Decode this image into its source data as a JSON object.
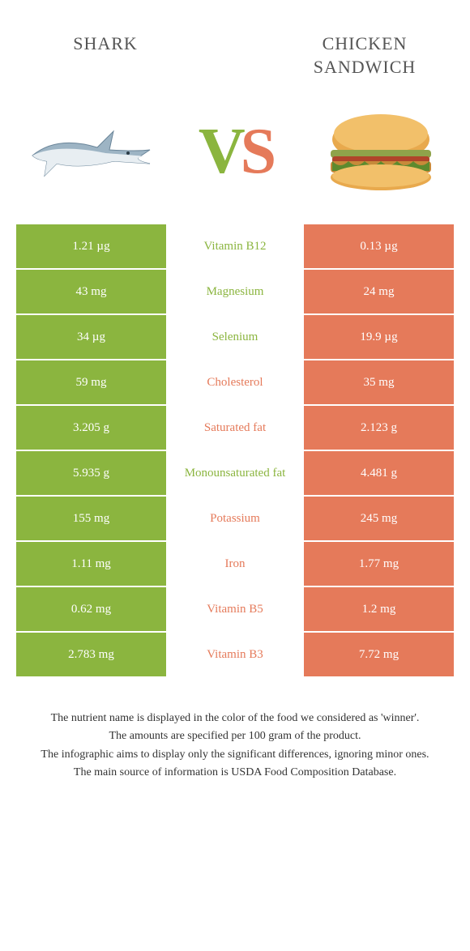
{
  "header": {
    "left_title": "Shark",
    "right_title": "Chicken sandwich",
    "vs_v": "V",
    "vs_s": "S"
  },
  "colors": {
    "left": "#8bb53f",
    "right": "#e57a5a",
    "mid_bg": "#ffffff",
    "page_bg": "#ffffff"
  },
  "rows": [
    {
      "left": "1.21 µg",
      "label": "Vitamin B12",
      "right": "0.13 µg",
      "winner": "left"
    },
    {
      "left": "43 mg",
      "label": "Magnesium",
      "right": "24 mg",
      "winner": "left"
    },
    {
      "left": "34 µg",
      "label": "Selenium",
      "right": "19.9 µg",
      "winner": "left"
    },
    {
      "left": "59 mg",
      "label": "Cholesterol",
      "right": "35 mg",
      "winner": "right"
    },
    {
      "left": "3.205 g",
      "label": "Saturated fat",
      "right": "2.123 g",
      "winner": "right"
    },
    {
      "left": "5.935 g",
      "label": "Monounsaturated fat",
      "right": "4.481 g",
      "winner": "left"
    },
    {
      "left": "155 mg",
      "label": "Potassium",
      "right": "245 mg",
      "winner": "right"
    },
    {
      "left": "1.11 mg",
      "label": "Iron",
      "right": "1.77 mg",
      "winner": "right"
    },
    {
      "left": "0.62 mg",
      "label": "Vitamin B5",
      "right": "1.2 mg",
      "winner": "right"
    },
    {
      "left": "2.783 mg",
      "label": "Vitamin B3",
      "right": "7.72 mg",
      "winner": "right"
    }
  ],
  "footnotes": [
    "The nutrient name is displayed in the color of the food we considered as 'winner'.",
    "The amounts are specified per 100 gram of the product.",
    "The infographic aims to display only the significant differences, ignoring minor ones.",
    "The main source of information is USDA Food Composition Database."
  ]
}
